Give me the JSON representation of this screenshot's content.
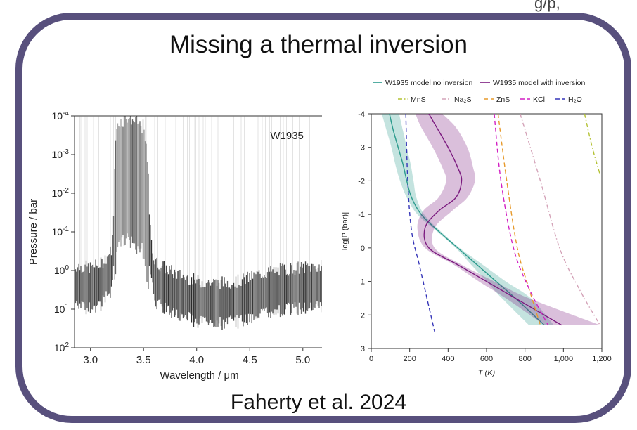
{
  "slide": {
    "title": "Missing a thermal inversion",
    "citation": "Faherty et al. 2024",
    "top_fragment": "g/p,"
  },
  "colors": {
    "frame": "#58507d",
    "no_inversion": "#2a9a8c",
    "with_inversion": "#7b1a7f",
    "mns": "#b4c234",
    "na2s": "#d4a3b8",
    "zns": "#e79a2c",
    "kcl": "#d21fc3",
    "h2o": "#3535b8"
  },
  "chart_data": [
    {
      "type": "heatmap",
      "title": "",
      "annotation": "W1935",
      "xlabel": "Wavelength / μm",
      "ylabel": "Pressure / bar",
      "xlim": [
        2.85,
        5.2
      ],
      "ylim_log10": [
        -4,
        2
      ],
      "y_scale": "log",
      "xticks": [
        3.0,
        3.5,
        4.0,
        4.5,
        5.0
      ],
      "xtick_labels": [
        "3.0",
        "3.5",
        "4.0",
        "4.5",
        "5.0"
      ],
      "yticks_log10": [
        -4,
        -3,
        -2,
        -1,
        0,
        1,
        2
      ],
      "ytick_labels": [
        {
          "base": "10",
          "exp": "-4"
        },
        {
          "base": "10",
          "exp": "-3"
        },
        {
          "base": "10",
          "exp": "-2"
        },
        {
          "base": "10",
          "exp": "-1"
        },
        {
          "base": "10",
          "exp": "0"
        },
        {
          "base": "10",
          "exp": "1"
        },
        {
          "base": "10",
          "exp": "2"
        }
      ],
      "contribution_peak_log10P": [
        {
          "x": 2.85,
          "y": 0.4
        },
        {
          "x": 3.0,
          "y": 0.45
        },
        {
          "x": 3.1,
          "y": 0.35
        },
        {
          "x": 3.2,
          "y": 0.0
        },
        {
          "x": 3.25,
          "y": -2.2
        },
        {
          "x": 3.35,
          "y": -2.4
        },
        {
          "x": 3.5,
          "y": -2.1
        },
        {
          "x": 3.6,
          "y": 0.3
        },
        {
          "x": 3.8,
          "y": 0.6
        },
        {
          "x": 4.0,
          "y": 0.8
        },
        {
          "x": 4.2,
          "y": 0.85
        },
        {
          "x": 4.4,
          "y": 0.8
        },
        {
          "x": 4.6,
          "y": 0.6
        },
        {
          "x": 4.8,
          "y": 0.5
        },
        {
          "x": 5.0,
          "y": 0.45
        },
        {
          "x": 5.2,
          "y": 0.4
        }
      ]
    },
    {
      "type": "line",
      "xlabel": "T (K)",
      "ylabel": "log[P (bar)]",
      "xlim": [
        0,
        1200
      ],
      "ylim": [
        3,
        -4
      ],
      "xticks": [
        0,
        200,
        400,
        600,
        800,
        1000,
        1200
      ],
      "xtick_labels": [
        "0",
        "200",
        "400",
        "600",
        "800",
        "1,000",
        "1,200"
      ],
      "yticks": [
        -4,
        -3,
        -2,
        -1,
        0,
        1,
        2,
        3
      ],
      "ytick_labels": [
        "-4",
        "-3",
        "-2",
        "-1",
        "0",
        "1",
        "2",
        "3"
      ],
      "legend_placement": "top",
      "legend": [
        {
          "label": "W1935 model no inversion",
          "key": "no_inversion",
          "style": "solid"
        },
        {
          "label": "W1935 model with inversion",
          "key": "with_inversion",
          "style": "solid"
        },
        {
          "label": "MnS",
          "key": "mns",
          "style": "dashdot"
        },
        {
          "label": "Na₂S",
          "key": "na2s",
          "style": "dashdot"
        },
        {
          "label": "ZnS",
          "key": "zns",
          "style": "dashed"
        },
        {
          "label": "KCl",
          "key": "kcl",
          "style": "dashed"
        },
        {
          "label": "H₂O",
          "key": "h2o",
          "style": "dashed"
        }
      ],
      "series": [
        {
          "name": "W1935 model no inversion",
          "color_key": "no_inversion",
          "style": "solid",
          "x": [
            95,
            115,
            140,
            165,
            185,
            210,
            260,
            350,
            450,
            550,
            650,
            750,
            900
          ],
          "y": [
            -4,
            -3.5,
            -3,
            -2.5,
            -2,
            -1.5,
            -1,
            -0.5,
            0,
            0.5,
            1,
            1.5,
            2.3
          ],
          "band_low": [
            55,
            80,
            105,
            125,
            150,
            185,
            240,
            340,
            440,
            520,
            600,
            680,
            820
          ],
          "band_high": [
            145,
            165,
            185,
            205,
            220,
            235,
            275,
            360,
            460,
            580,
            700,
            830,
            950
          ]
        },
        {
          "name": "W1935 model with inversion",
          "color_key": "with_inversion",
          "style": "solid",
          "x": [
            300,
            340,
            400,
            450,
            470,
            440,
            350,
            280,
            300,
            450,
            600,
            750,
            990
          ],
          "y": [
            -4,
            -3.6,
            -3,
            -2.4,
            -2,
            -1.5,
            -1.1,
            -0.6,
            0,
            0.5,
            1,
            1.5,
            2.3
          ],
          "band_low": [
            230,
            260,
            320,
            370,
            390,
            350,
            270,
            240,
            280,
            430,
            560,
            700,
            900
          ],
          "band_high": [
            370,
            440,
            500,
            530,
            540,
            500,
            420,
            330,
            330,
            470,
            640,
            820,
            1190
          ]
        },
        {
          "name": "MnS",
          "color_key": "mns",
          "style": "dashdot",
          "x": [
            1110,
            1150,
            1190
          ],
          "y": [
            -4,
            -3,
            -2.2
          ]
        },
        {
          "name": "Na₂S",
          "color_key": "na2s",
          "style": "dashdot",
          "x": [
            775,
            880,
            980,
            1080,
            1190
          ],
          "y": [
            -4,
            -2,
            0,
            1.2,
            2.3
          ]
        },
        {
          "name": "ZnS",
          "color_key": "zns",
          "style": "dashed",
          "x": [
            660,
            705,
            760,
            820,
            880
          ],
          "y": [
            -4,
            -2,
            0,
            1.2,
            2.3
          ]
        },
        {
          "name": "KCl",
          "color_key": "kcl",
          "style": "dashed",
          "x": [
            640,
            675,
            740,
            820,
            920
          ],
          "y": [
            -4,
            -2,
            0,
            1.2,
            2.3
          ]
        },
        {
          "name": "H₂O",
          "color_key": "h2o",
          "style": "dashed",
          "x": [
            180,
            190,
            210,
            250,
            290,
            330
          ],
          "y": [
            -4,
            -2,
            -0.5,
            0.5,
            1.5,
            2.5
          ]
        }
      ]
    }
  ]
}
